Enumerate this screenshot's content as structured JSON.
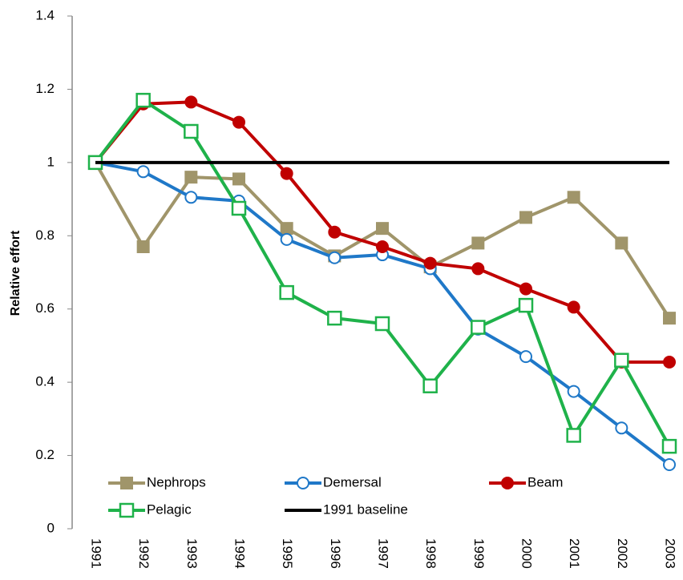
{
  "chart_data": {
    "type": "line",
    "y_label": "Relative effort",
    "categories": [
      "1991",
      "1992",
      "1993",
      "1994",
      "1995",
      "1996",
      "1997",
      "1998",
      "1999",
      "2000",
      "2001",
      "2002",
      "2003"
    ],
    "series": [
      {
        "name": "Nephrops",
        "color": "#a0956a",
        "marker": "square",
        "values": [
          1.0,
          0.77,
          0.96,
          0.955,
          0.82,
          0.745,
          0.82,
          0.715,
          0.78,
          0.85,
          0.905,
          0.78,
          0.575
        ]
      },
      {
        "name": "Demersal",
        "color": "#1f78c8",
        "marker": "open-circle",
        "values": [
          1.0,
          0.975,
          0.905,
          0.895,
          0.79,
          0.74,
          0.748,
          0.71,
          0.545,
          0.47,
          0.375,
          0.275,
          0.175
        ]
      },
      {
        "name": "Beam",
        "color": "#c00000",
        "marker": "circle",
        "values": [
          1.0,
          1.16,
          1.165,
          1.11,
          0.97,
          0.81,
          0.77,
          0.725,
          0.71,
          0.655,
          0.605,
          0.455,
          0.455
        ]
      },
      {
        "name": "Pelagic",
        "color": "#1fb24a",
        "marker": "open-square",
        "values": [
          1.0,
          1.17,
          1.085,
          0.875,
          0.645,
          0.575,
          0.56,
          0.39,
          0.55,
          0.61,
          0.255,
          0.46,
          0.225
        ]
      },
      {
        "name": "1991 baseline",
        "color": "#000000",
        "marker": "none",
        "values": [
          1,
          1,
          1,
          1,
          1,
          1,
          1,
          1,
          1,
          1,
          1,
          1,
          1
        ]
      }
    ],
    "ylim": [
      0,
      1.4
    ],
    "yticks": [
      0,
      0.2,
      0.4,
      0.6,
      0.8,
      1,
      1.2,
      1.4
    ],
    "grid": false,
    "legend": "bottom"
  }
}
